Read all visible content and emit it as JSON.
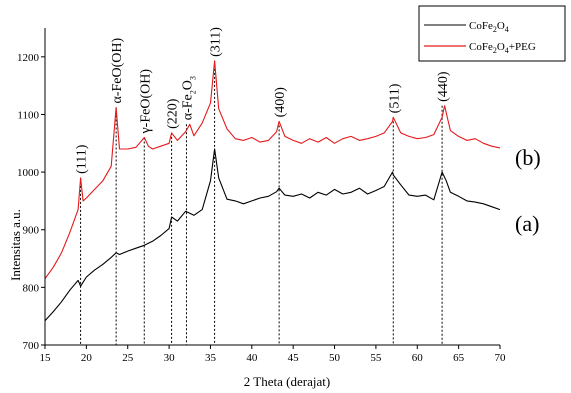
{
  "chart_data": {
    "type": "line",
    "xlabel": "2 Theta (derajat)",
    "ylabel": "Intensitas a.u.",
    "xlim": [
      15,
      70
    ],
    "ylim": [
      700,
      1250
    ],
    "x_ticks": [
      "15",
      "20",
      "25",
      "30",
      "35",
      "40",
      "45",
      "50",
      "55",
      "60",
      "65",
      "70"
    ],
    "y_ticks": [
      "700",
      "800",
      "900",
      "1000",
      "1100",
      "1200"
    ],
    "grid": false,
    "legend_position": "top-right",
    "colors": {
      "a": "#000000",
      "b": "#e41a1c"
    },
    "legend": [
      {
        "main": "CoFe",
        "sub": "2",
        "main2": "O",
        "sub2": "4",
        "tail": ""
      },
      {
        "main": "CoFe",
        "sub": "2",
        "main2": "O",
        "sub2": "4",
        "tail": "+PEG"
      }
    ],
    "curve_labels": {
      "a": "(a)",
      "b": "(b)"
    },
    "peaks": [
      {
        "x": 19.3,
        "y": 990,
        "label": "(111)"
      },
      {
        "x": 23.6,
        "y": 1112,
        "label": "α-FeO(OH)"
      },
      {
        "x": 27.0,
        "y": 1060,
        "label": "γ-FeO(OH)"
      },
      {
        "x": 30.3,
        "y": 1068,
        "label": "(220)"
      },
      {
        "x": 32.1,
        "y": 1083,
        "label": "α-Fe",
        "sub": "2",
        "main2": "O",
        "sub2": "3"
      },
      {
        "x": 35.5,
        "y": 1193,
        "label": "(311)"
      },
      {
        "x": 43.3,
        "y": 1088,
        "label": "(400)"
      },
      {
        "x": 57.1,
        "y": 1095,
        "label": "(511)"
      },
      {
        "x": 63.0,
        "y": 1115,
        "label": "(440)"
      }
    ],
    "series": [
      {
        "id": "a",
        "name": "CoFe2O4",
        "x": [
          15,
          16,
          17,
          18,
          19,
          19.3,
          20,
          21,
          22,
          23,
          23.6,
          24,
          25,
          26,
          27,
          28,
          29,
          30,
          30.3,
          31,
          32,
          33,
          34,
          35,
          35.5,
          36,
          37,
          38,
          39,
          40,
          41,
          42,
          43,
          43.3,
          44,
          45,
          46,
          47,
          48,
          49,
          50,
          51,
          52,
          53,
          54,
          55,
          56,
          57,
          57.1,
          58,
          59,
          60,
          61,
          62,
          63,
          63.5,
          64,
          65,
          66,
          67,
          68,
          69,
          70
        ],
        "y": [
          742,
          758,
          775,
          795,
          812,
          802,
          818,
          830,
          840,
          852,
          860,
          857,
          863,
          868,
          873,
          880,
          890,
          902,
          922,
          915,
          932,
          925,
          935,
          985,
          1040,
          990,
          953,
          950,
          945,
          950,
          955,
          958,
          966,
          972,
          960,
          958,
          962,
          955,
          965,
          960,
          970,
          962,
          965,
          972,
          962,
          968,
          975,
          1000,
          995,
          978,
          960,
          958,
          960,
          952,
          1000,
          985,
          965,
          958,
          950,
          948,
          945,
          940,
          935
        ]
      },
      {
        "id": "b",
        "name": "CoFe2O4+PEG",
        "x": [
          15,
          16,
          17,
          18,
          19,
          19.3,
          19.6,
          20,
          21,
          22,
          23,
          23.6,
          24,
          25,
          26,
          27,
          27.5,
          28,
          29,
          30,
          30.3,
          31,
          32,
          32.5,
          33,
          34,
          35,
          35.5,
          36,
          37,
          38,
          39,
          40,
          41,
          42,
          43,
          43.3,
          44,
          45,
          46,
          47,
          48,
          49,
          50,
          51,
          52,
          53,
          54,
          55,
          56,
          57,
          57.1,
          58,
          59,
          60,
          61,
          62,
          63,
          63.3,
          64,
          65,
          66,
          67,
          68,
          69,
          70
        ],
        "y": [
          815,
          835,
          860,
          895,
          935,
          990,
          950,
          955,
          970,
          985,
          1010,
          1112,
          1040,
          1040,
          1043,
          1060,
          1045,
          1040,
          1045,
          1050,
          1068,
          1055,
          1070,
          1083,
          1063,
          1085,
          1120,
          1193,
          1110,
          1075,
          1058,
          1055,
          1060,
          1052,
          1055,
          1070,
          1088,
          1062,
          1055,
          1050,
          1058,
          1052,
          1060,
          1050,
          1058,
          1062,
          1055,
          1058,
          1062,
          1068,
          1088,
          1095,
          1068,
          1062,
          1058,
          1060,
          1065,
          1095,
          1115,
          1072,
          1062,
          1055,
          1058,
          1050,
          1045,
          1042
        ]
      }
    ]
  }
}
